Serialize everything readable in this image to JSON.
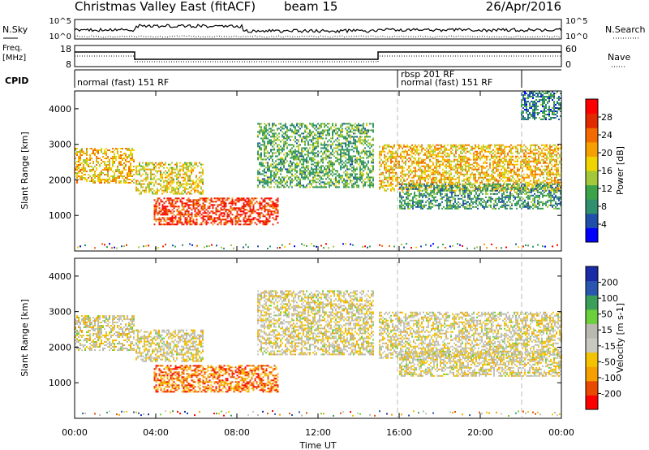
{
  "header": {
    "title": "Christmas Valley East (fitACF)",
    "beam": "beam 15",
    "date": "26/Apr/2016"
  },
  "top_panel": {
    "nsky_label": "N.Sky",
    "nsky_ticks": [
      "10^5",
      "10^0"
    ],
    "nsearch_label": "N.Search",
    "nsearch_ticks": [
      "10^5",
      "10^0"
    ],
    "freq_label_1": "Freq.",
    "freq_label_2": "[MHz]",
    "freq_ticks": [
      "18",
      "8"
    ],
    "nave_label": "Nave",
    "nave_ticks": [
      "60",
      "0"
    ],
    "cpid_label": "CPID",
    "cpid_segments": [
      "normal (fast) 151 RF",
      "rbsp 201 RF",
      "normal (fast) 151 RF"
    ]
  },
  "colors": {
    "power_scale": [
      "#0000ff",
      "#1f4fa8",
      "#2f8f6f",
      "#3ba34a",
      "#a3c93a",
      "#f0d400",
      "#f5a000",
      "#f26a00",
      "#e12a00",
      "#ff0000"
    ],
    "velocity_scale": [
      "#ff0000",
      "#e84a00",
      "#f5a000",
      "#f3c300",
      "#c8c8c0",
      "#b9b9b0",
      "#6ccf3c",
      "#3b9f5a",
      "#2b56b0",
      "#1a2ba8"
    ],
    "dash_line": "#bbbbbb"
  },
  "chart_data": [
    {
      "type": "heatmap",
      "name": "power",
      "xlabel": "Time UT",
      "ylabel": "Slant Range [km]",
      "xlim": [
        0,
        24
      ],
      "ylim": [
        0,
        4500
      ],
      "x_ticks": [
        "00:00",
        "04:00",
        "08:00",
        "12:00",
        "16:00",
        "20:00",
        "00:00"
      ],
      "y_ticks": [
        1000,
        2000,
        3000,
        4000
      ],
      "colorbar_label": "Power [dB]",
      "colorbar_ticks": [
        "4",
        "8",
        "12",
        "16",
        "20",
        "24",
        "28"
      ],
      "regions": [
        {
          "x": [
            0.0,
            2.9
          ],
          "y": [
            1900,
            2900
          ],
          "level": 0.6
        },
        {
          "x": [
            3.0,
            6.3
          ],
          "y": [
            1600,
            2500
          ],
          "level": 0.55
        },
        {
          "x": [
            3.9,
            10.0
          ],
          "y": [
            750,
            1500
          ],
          "level": 0.85
        },
        {
          "x": [
            9.0,
            14.7
          ],
          "y": [
            1800,
            3600
          ],
          "level": 0.35
        },
        {
          "x": [
            15.0,
            24.0
          ],
          "y": [
            1700,
            3000
          ],
          "level": 0.6
        },
        {
          "x": [
            16.0,
            24.0
          ],
          "y": [
            1200,
            1900
          ],
          "level": 0.3
        },
        {
          "x": [
            22.0,
            24.0
          ],
          "y": [
            3700,
            4500
          ],
          "level": 0.25
        }
      ]
    },
    {
      "type": "heatmap",
      "name": "velocity",
      "xlabel": "Time UT",
      "ylabel": "Slant Range [km]",
      "xlim": [
        0,
        24
      ],
      "ylim": [
        0,
        4500
      ],
      "x_ticks": [
        "00:00",
        "04:00",
        "08:00",
        "12:00",
        "16:00",
        "20:00",
        "00:00"
      ],
      "y_ticks": [
        1000,
        2000,
        3000,
        4000
      ],
      "colorbar_label": "Velocity [m s-1]",
      "colorbar_ticks": [
        "200",
        "100",
        "50",
        "15",
        "-15",
        "-50",
        "-100",
        "-200"
      ],
      "regions": [
        {
          "x": [
            0.0,
            2.9
          ],
          "y": [
            1900,
            2900
          ],
          "level": 0.45
        },
        {
          "x": [
            3.0,
            6.3
          ],
          "y": [
            1600,
            2500
          ],
          "level": 0.45
        },
        {
          "x": [
            3.9,
            10.0
          ],
          "y": [
            750,
            1500
          ],
          "level": 0.2
        },
        {
          "x": [
            9.0,
            14.7
          ],
          "y": [
            1800,
            3600
          ],
          "level": 0.45
        },
        {
          "x": [
            15.0,
            24.0
          ],
          "y": [
            1700,
            3000
          ],
          "level": 0.45
        },
        {
          "x": [
            16.0,
            24.0
          ],
          "y": [
            1200,
            1900
          ],
          "level": 0.45
        }
      ]
    }
  ]
}
